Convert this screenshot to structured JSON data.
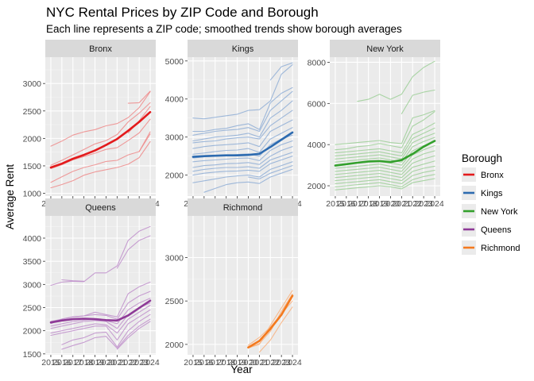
{
  "chart_data": {
    "type": "line",
    "title": "NYC Rental Prices by ZIP Code and Borough",
    "subtitle": "Each line represents a ZIP code; smoothed trends show borough averages",
    "xlabel": "Year",
    "ylabel": "Average Rent",
    "x": [
      2015,
      2016,
      2017,
      2018,
      2019,
      2020,
      2021,
      2022,
      2023,
      2024
    ],
    "x_tick_labels": [
      "2015",
      "2016",
      "2017",
      "2018",
      "2019",
      "2020",
      "2021",
      "2022",
      "2023",
      "2024"
    ],
    "grid": true,
    "legend": {
      "title": "Borough",
      "position": "right",
      "entries": [
        {
          "name": "Bronx",
          "color": "#e31a1c"
        },
        {
          "name": "Kings",
          "color": "#2d6bb0"
        },
        {
          "name": "New York",
          "color": "#33a02c"
        },
        {
          "name": "Queens",
          "color": "#8e3a97"
        },
        {
          "name": "Richmond",
          "color": "#f47a1f"
        }
      ]
    },
    "panels": [
      {
        "name": "Bronx",
        "color": "#e31a1c",
        "light_color": "#ef8a8a",
        "y_ticks": [
          1000,
          1500,
          2000,
          2500,
          3000
        ],
        "ylim": [
          950,
          3480
        ],
        "trend": [
          1470,
          1540,
          1630,
          1700,
          1780,
          1880,
          1990,
          2140,
          2300,
          2480
        ],
        "zips": [
          [
            1860,
            1950,
            2060,
            2120,
            2160,
            2230,
            2270,
            2380,
            2560,
            2850
          ],
          [
            1510,
            1600,
            1700,
            1800,
            1900,
            1960,
            2070,
            2300,
            2460,
            2650
          ],
          [
            1450,
            1520,
            1610,
            1670,
            1730,
            1800,
            1830,
            1960,
            2100,
            2350
          ],
          [
            1200,
            1300,
            1400,
            1470,
            1520,
            1580,
            1600,
            1700,
            1760,
            2120
          ],
          [
            1100,
            1160,
            1230,
            1330,
            1390,
            1430,
            1470,
            1530,
            1650,
            1940
          ],
          [
            null,
            null,
            null,
            null,
            null,
            null,
            null,
            2640,
            2650,
            2860
          ],
          [
            null,
            null,
            null,
            null,
            null,
            null,
            null,
            2100,
            2320,
            2580
          ],
          [
            null,
            null,
            null,
            null,
            null,
            null,
            null,
            null,
            1760,
            2080
          ]
        ]
      },
      {
        "name": "Kings",
        "color": "#2d6bb0",
        "light_color": "#8faed6",
        "y_ticks": [
          2000,
          3000,
          4000,
          5000
        ],
        "ylim": [
          1450,
          5100
        ],
        "trend": [
          2480,
          2500,
          2510,
          2520,
          2520,
          2530,
          2560,
          2740,
          2930,
          3120
        ],
        "zips": [
          [
            3500,
            3480,
            3520,
            3560,
            3600,
            3700,
            3720,
            3950,
            4650,
            4900
          ],
          [
            null,
            null,
            null,
            null,
            null,
            null,
            null,
            4500,
            4850,
            4950
          ],
          [
            3150,
            3150,
            3200,
            3230,
            3300,
            3350,
            3200,
            3900,
            4150,
            4300
          ],
          [
            3050,
            3100,
            3150,
            3180,
            3200,
            3250,
            3150,
            3700,
            3950,
            4200
          ],
          [
            2900,
            2950,
            3000,
            3020,
            3050,
            3100,
            3000,
            3500,
            3700,
            3950
          ],
          [
            2850,
            2880,
            2900,
            2950,
            2980,
            3000,
            2950,
            3300,
            3500,
            3700
          ],
          [
            2700,
            2750,
            2780,
            2800,
            2820,
            2850,
            2750,
            3150,
            3300,
            3450
          ],
          [
            2550,
            2580,
            2620,
            2650,
            2660,
            2700,
            2600,
            2950,
            3100,
            3250
          ],
          [
            2450,
            2480,
            2500,
            2520,
            2540,
            2560,
            2500,
            2800,
            2950,
            3050
          ],
          [
            2350,
            2380,
            2400,
            2420,
            2440,
            2450,
            2380,
            2650,
            2800,
            2900
          ],
          [
            2200,
            2250,
            2270,
            2300,
            2310,
            2330,
            2280,
            2500,
            2650,
            2750
          ],
          [
            2100,
            2150,
            2180,
            2200,
            2200,
            2220,
            2180,
            2400,
            2500,
            2600
          ],
          [
            2000,
            2050,
            2080,
            2100,
            2110,
            2130,
            2100,
            2300,
            2400,
            2500
          ],
          [
            1800,
            1850,
            1900,
            1950,
            1980,
            2000,
            1950,
            2150,
            2250,
            2350
          ],
          [
            null,
            1550,
            1650,
            1750,
            1800,
            1820,
            1780,
            1950,
            2050,
            2150
          ],
          [
            null,
            null,
            null,
            null,
            null,
            1950,
            1900,
            2050,
            2150,
            2250
          ]
        ]
      },
      {
        "name": "New York",
        "color": "#33a02c",
        "light_color": "#9ccf97",
        "y_ticks": [
          2000,
          4000,
          6000,
          8000
        ],
        "ylim": [
          1500,
          8250
        ],
        "trend": [
          2980,
          3050,
          3120,
          3180,
          3200,
          3150,
          3250,
          3550,
          3900,
          4180
        ],
        "zips": [
          [
            null,
            null,
            6100,
            6200,
            6450,
            6200,
            6450,
            7300,
            7750,
            8050
          ],
          [
            null,
            null,
            null,
            null,
            null,
            null,
            5500,
            6400,
            6550,
            6650
          ],
          [
            4000,
            4050,
            4100,
            4150,
            4200,
            4100,
            4050,
            5300,
            5450,
            5650
          ],
          [
            3750,
            3800,
            3900,
            3950,
            4050,
            3950,
            3850,
            4900,
            5200,
            5600
          ],
          [
            3600,
            3650,
            3700,
            3750,
            3800,
            3700,
            3600,
            4500,
            4750,
            5050
          ],
          [
            3450,
            3500,
            3550,
            3600,
            3650,
            3550,
            3450,
            4300,
            4550,
            4800
          ],
          [
            3300,
            3350,
            3400,
            3450,
            3500,
            3400,
            3300,
            4100,
            4350,
            4550
          ],
          [
            3150,
            3200,
            3250,
            3300,
            3350,
            3250,
            3150,
            3900,
            4150,
            4350
          ],
          [
            3000,
            3050,
            3100,
            3150,
            3200,
            3100,
            3000,
            3700,
            3950,
            4150
          ],
          [
            2850,
            2900,
            2950,
            3000,
            3050,
            2950,
            2850,
            3500,
            3750,
            3950
          ],
          [
            2700,
            2750,
            2800,
            2850,
            2900,
            2800,
            2700,
            3300,
            3550,
            3700
          ],
          [
            2550,
            2600,
            2650,
            2700,
            2750,
            2650,
            2550,
            3100,
            3300,
            3450
          ],
          [
            2400,
            2450,
            2500,
            2550,
            2600,
            2500,
            2400,
            2900,
            3050,
            3200
          ],
          [
            2250,
            2300,
            2350,
            2400,
            2450,
            2350,
            2250,
            2700,
            2850,
            2950
          ],
          [
            2100,
            2150,
            2200,
            2250,
            2300,
            2200,
            2100,
            2500,
            2650,
            2750
          ],
          [
            1950,
            2000,
            2050,
            2100,
            2150,
            2050,
            1950,
            2300,
            2450,
            2550
          ],
          [
            1800,
            1850,
            1900,
            1950,
            2000,
            1950,
            1850,
            2150,
            2250,
            2350
          ]
        ]
      },
      {
        "name": "Queens",
        "color": "#8e3a97",
        "light_color": "#c08fcb",
        "y_ticks": [
          1500,
          2000,
          2500,
          3000,
          3500,
          4000
        ],
        "ylim": [
          1480,
          4480
        ],
        "trend": [
          2180,
          2220,
          2250,
          2260,
          2250,
          2230,
          2220,
          2330,
          2490,
          2650
        ],
        "zips": [
          [
            null,
            3100,
            3080,
            3070,
            null,
            null,
            null,
            null,
            null,
            null
          ],
          [
            2980,
            3050,
            3070,
            3060,
            3250,
            3250,
            3400,
            3950,
            4150,
            4250
          ],
          [
            null,
            null,
            null,
            null,
            null,
            null,
            3350,
            3750,
            3950,
            4050
          ],
          [
            2200,
            2250,
            2300,
            2320,
            2400,
            2350,
            2300,
            2800,
            2950,
            3050
          ],
          [
            2150,
            2250,
            2300,
            2320,
            2350,
            2330,
            2250,
            2600,
            2750,
            2850
          ],
          [
            2100,
            2150,
            2200,
            2230,
            2250,
            2220,
            2150,
            2450,
            2600,
            2700
          ],
          [
            2050,
            2100,
            2150,
            2200,
            2220,
            2200,
            2050,
            2350,
            2500,
            2600
          ],
          [
            1950,
            2000,
            2050,
            2100,
            2150,
            2130,
            1950,
            2250,
            2400,
            2550
          ],
          [
            1900,
            1950,
            2000,
            2050,
            2100,
            2100,
            1800,
            2150,
            2300,
            2450
          ],
          [
            null,
            1700,
            1800,
            1850,
            1950,
            1970,
            1650,
            2000,
            2200,
            2350
          ],
          [
            null,
            1600,
            1680,
            1750,
            1850,
            1880,
            1620,
            1900,
            2100,
            2250
          ],
          [
            null,
            null,
            null,
            null,
            null,
            null,
            1600,
            1850,
            2050,
            2200
          ]
        ]
      },
      {
        "name": "Richmond",
        "color": "#f47a1f",
        "light_color": "#f8b27f",
        "y_ticks": [
          2000,
          2500,
          3000
        ],
        "ylim": [
          1880,
          3480
        ],
        "trend": [
          null,
          null,
          null,
          null,
          null,
          1965,
          2040,
          2180,
          2340,
          2560
        ],
        "zips": [
          [
            null,
            null,
            null,
            null,
            null,
            1960,
            2000,
            2220,
            2420,
            2620
          ],
          [
            null,
            null,
            null,
            null,
            null,
            1960,
            2010,
            2150,
            2380,
            2580
          ],
          [
            null,
            null,
            null,
            null,
            null,
            null,
            1910,
            2050,
            2250,
            2430
          ],
          [
            null,
            null,
            null,
            null,
            null,
            1990,
            2080,
            2200,
            2350,
            2500
          ]
        ]
      }
    ]
  }
}
